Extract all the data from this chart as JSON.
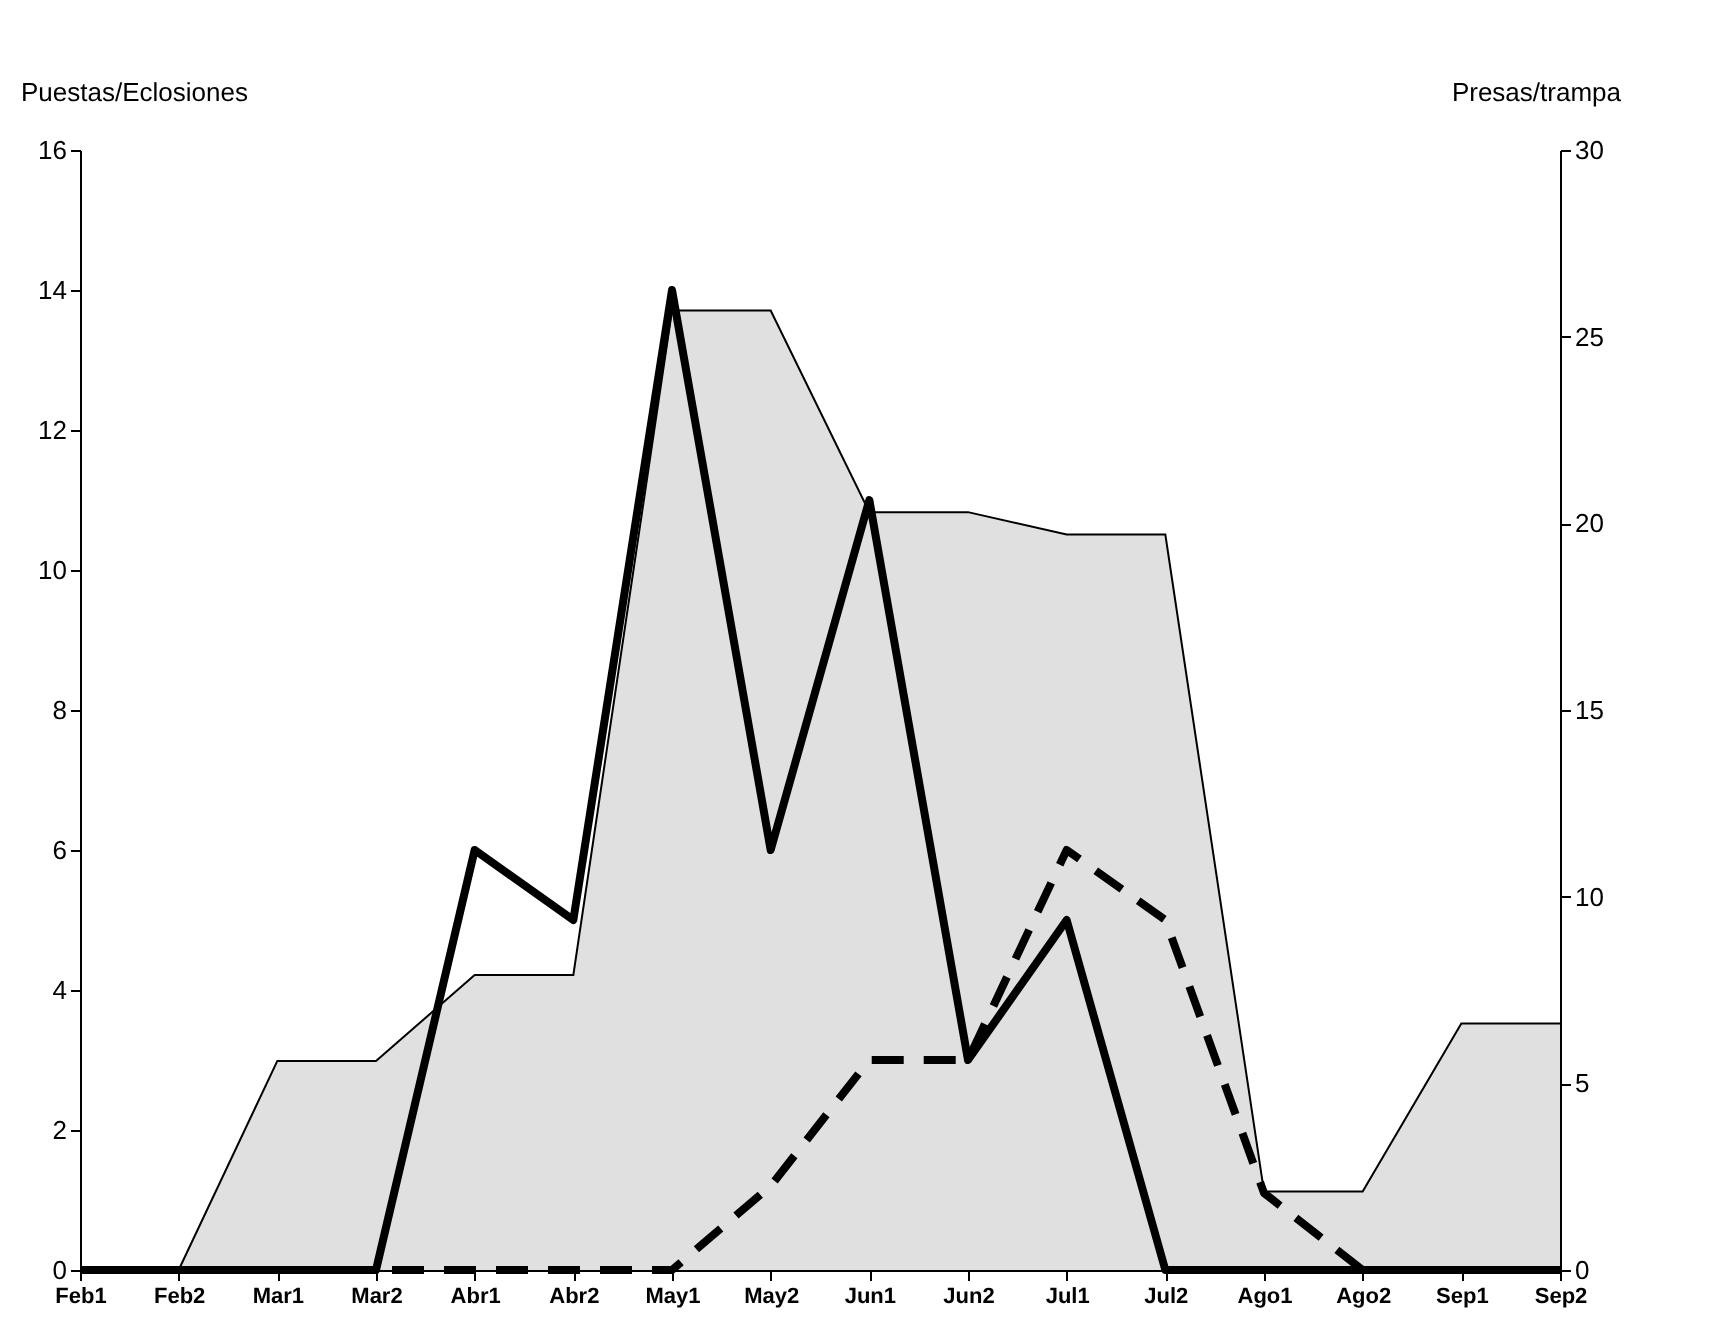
{
  "chart_data": {
    "type": "line",
    "ylabel": "Puestas/Eclosiones",
    "y2label": "Presas/trampa",
    "categories": [
      "Feb1",
      "Feb2",
      "Mar1",
      "Mar2",
      "Abr1",
      "Abr2",
      "May1",
      "May2",
      "Jun1",
      "Jun2",
      "Jul1",
      "Jul2",
      "Ago1",
      "Ago2",
      "Sep1",
      "Sep2"
    ],
    "ylim": [
      0,
      16
    ],
    "yticks": [
      0,
      2,
      4,
      6,
      8,
      10,
      12,
      14,
      16
    ],
    "y2lim": [
      0,
      30
    ],
    "y2ticks": [
      0,
      5,
      10,
      15,
      20,
      25,
      30
    ],
    "marker": "none",
    "series": [
      {
        "type": "area",
        "axis": "y2",
        "color": "#e0e0e0",
        "values": [
          0,
          0,
          5.6,
          5.6,
          7.9,
          7.9,
          25.7,
          25.7,
          20.3,
          20.3,
          19.7,
          19.7,
          2.1,
          2.1,
          6.6,
          6.6
        ]
      },
      {
        "color": "#000000",
        "line_style": "solid",
        "values": [
          0,
          0,
          0,
          0,
          6,
          5,
          14,
          6,
          11,
          3,
          5,
          0,
          0,
          0,
          0,
          0
        ]
      },
      {
        "color": "#000000",
        "line_style": "dashed",
        "values": [
          0,
          0,
          0,
          0,
          0,
          0,
          0,
          1.2,
          3,
          3,
          6,
          5,
          1.1,
          0,
          0,
          0
        ]
      }
    ]
  }
}
